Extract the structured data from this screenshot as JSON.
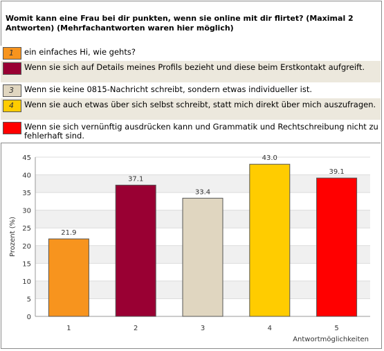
{
  "question": "Womit kann eine Frau bei dir punkten, wenn sie online mit dir flirtet? (Maximal 2 Antworten) (Mehrfachantworten waren hier möglich)",
  "answers": [
    {
      "num": "1",
      "text": "ein einfaches Hi, wie gehts?",
      "color": "#f7941e"
    },
    {
      "num": "2",
      "text": "Wenn sie sich auf Details meines Profils bezieht und diese beim Erstkontakt aufgreift.",
      "color": "#990033"
    },
    {
      "num": "3",
      "text": "Wenn sie keine 0815-Nachricht schreibt, sondern etwas individueller ist.",
      "color": "#e0d6c0"
    },
    {
      "num": "4",
      "text": "Wenn sie auch etwas über sich selbst schreibt, statt mich direkt über mich auszufragen.",
      "color": "#ffcc00"
    },
    {
      "num": "5",
      "text": "Wenn sie sich vernünftig ausdrücken kann und Grammatik und Rechtschreibung nicht zu fehlerhaft sind.",
      "color": "#ff0000"
    }
  ],
  "chart_data": {
    "type": "bar",
    "categories": [
      "1",
      "2",
      "3",
      "4",
      "5"
    ],
    "values": [
      21.9,
      37.1,
      33.4,
      43.0,
      39.1
    ],
    "value_labels": [
      "21.9",
      "37.1",
      "33.4",
      "43.0",
      "39.1"
    ],
    "colors": [
      "#f7941e",
      "#990033",
      "#e0d6c0",
      "#ffcc00",
      "#ff0000"
    ],
    "xlabel": "Antwortmöglichkeiten",
    "ylabel": "Prozent (%)",
    "ylim": [
      0,
      45
    ],
    "yticks": [
      0,
      5,
      10,
      15,
      20,
      25,
      30,
      35,
      40,
      45
    ],
    "grid": true
  }
}
